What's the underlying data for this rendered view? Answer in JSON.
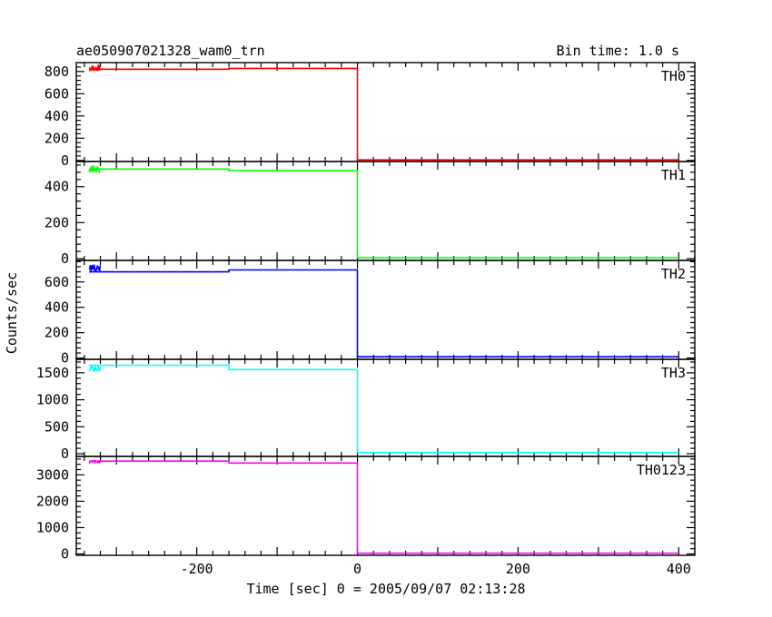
{
  "header": {
    "title": "ae050907021328_wam0_trn",
    "bin_time": "Bin time: 1.0 s"
  },
  "chart_data": {
    "type": "line",
    "xlabel": "Time [sec] 0 = 2005/09/07 02:13:28",
    "ylabel": "Counts/sec",
    "xlim": [
      -350,
      420
    ],
    "x_ticks": [
      -200,
      0,
      200,
      400
    ],
    "grid": false,
    "series": [
      {
        "name": "TH0",
        "color": "#ff0000",
        "ylim": [
          -10,
          880
        ],
        "y_ticks": [
          0,
          200,
          400,
          600,
          800
        ],
        "noise_range": [
          -334,
          -320
        ],
        "noise_band": [
          800,
          860
        ],
        "points": [
          [
            -334,
            820
          ],
          [
            -160,
            820
          ],
          [
            -160,
            828
          ],
          [
            0,
            828
          ],
          [
            0,
            5
          ],
          [
            400,
            5
          ]
        ]
      },
      {
        "name": "TH1",
        "color": "#00ff00",
        "ylim": [
          -10,
          540
        ],
        "y_ticks": [
          0,
          200,
          400
        ],
        "noise_range": [
          -334,
          -320
        ],
        "noise_band": [
          480,
          520
        ],
        "points": [
          [
            -334,
            498
          ],
          [
            -160,
            498
          ],
          [
            -160,
            490
          ],
          [
            0,
            490
          ],
          [
            0,
            5
          ],
          [
            400,
            5
          ]
        ]
      },
      {
        "name": "TH2",
        "color": "#0000ff",
        "ylim": [
          -10,
          770
        ],
        "y_ticks": [
          0,
          200,
          400,
          600
        ],
        "noise_range": [
          -334,
          -320
        ],
        "noise_band": [
          680,
          740
        ],
        "points": [
          [
            -334,
            680
          ],
          [
            -160,
            680
          ],
          [
            -160,
            695
          ],
          [
            0,
            695
          ],
          [
            0,
            10
          ],
          [
            400,
            10
          ]
        ]
      },
      {
        "name": "TH3",
        "color": "#00ffff",
        "ylim": [
          -50,
          1750
        ],
        "y_ticks": [
          0,
          500,
          1000,
          1500
        ],
        "noise_range": [
          -334,
          -320
        ],
        "noise_band": [
          1520,
          1640
        ],
        "points": [
          [
            -334,
            1640
          ],
          [
            -160,
            1640
          ],
          [
            -160,
            1560
          ],
          [
            0,
            1560
          ],
          [
            0,
            20
          ],
          [
            400,
            20
          ]
        ]
      },
      {
        "name": "TH0123",
        "color": "#ff00ff",
        "ylim": [
          -50,
          3700
        ],
        "y_ticks": [
          0,
          1000,
          2000,
          3000
        ],
        "noise_range": [
          -334,
          -320
        ],
        "noise_band": [
          3430,
          3560
        ],
        "points": [
          [
            -334,
            3520
          ],
          [
            -160,
            3520
          ],
          [
            -160,
            3450
          ],
          [
            0,
            3450
          ],
          [
            0,
            30
          ],
          [
            400,
            30
          ]
        ]
      }
    ]
  }
}
